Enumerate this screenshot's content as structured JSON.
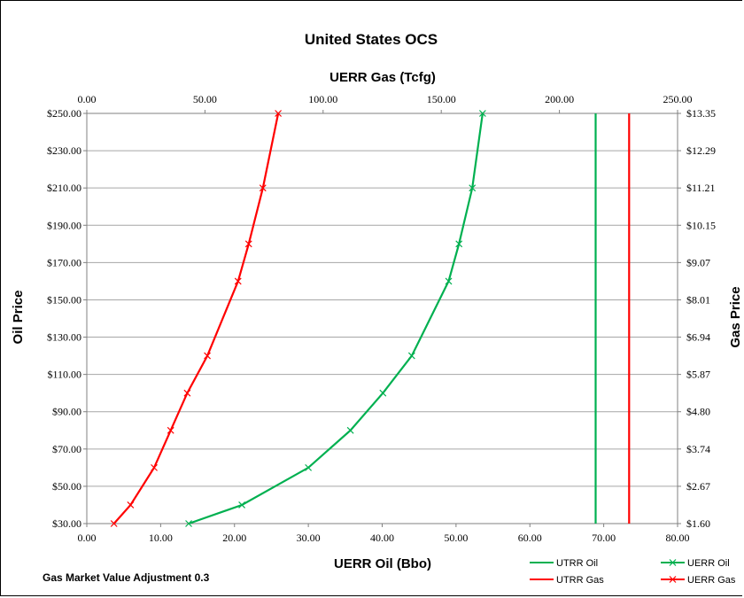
{
  "chart_data": {
    "type": "line",
    "title": "United States OCS",
    "x_bottom_label": "UERR Oil (Bbo)",
    "x_top_label": "UERR Gas (Tcfg)",
    "y_left_label": "Oil Price",
    "y_right_label": "Gas Price",
    "x_bottom_range": [
      0,
      80
    ],
    "x_bottom_ticks": [
      "0.00",
      "10.00",
      "20.00",
      "30.00",
      "40.00",
      "50.00",
      "60.00",
      "70.00",
      "80.00"
    ],
    "x_top_range": [
      0,
      250
    ],
    "x_top_ticks": [
      "0.00",
      "50.00",
      "100.00",
      "150.00",
      "200.00",
      "250.00"
    ],
    "y_left_range": [
      30,
      250
    ],
    "y_left_ticks": [
      "$30.00",
      "$50.00",
      "$70.00",
      "$90.00",
      "$110.00",
      "$130.00",
      "$150.00",
      "$170.00",
      "$190.00",
      "$210.00",
      "$230.00",
      "$250.00"
    ],
    "y_right_ticks": [
      "$1.60",
      "$2.67",
      "$3.74",
      "$4.80",
      "$5.87",
      "$6.94",
      "$8.01",
      "$9.07",
      "$10.15",
      "$11.21",
      "$12.29",
      "$13.35"
    ],
    "grid": "horizontal",
    "series": [
      {
        "name": "UTRR Oil",
        "axis": "bottom",
        "color": "#00b050",
        "marker": "none",
        "points": [
          [
            68.9,
            30
          ],
          [
            68.9,
            250
          ]
        ]
      },
      {
        "name": "UERR Oil",
        "axis": "bottom",
        "color": "#00b050",
        "marker": "x",
        "points": [
          [
            13.8,
            30
          ],
          [
            21.0,
            40
          ],
          [
            30.0,
            60
          ],
          [
            35.7,
            80
          ],
          [
            40.1,
            100
          ],
          [
            44.0,
            120
          ],
          [
            49.0,
            160
          ],
          [
            50.4,
            180
          ],
          [
            52.2,
            210
          ],
          [
            53.6,
            250
          ]
        ]
      },
      {
        "name": "UTRR Gas",
        "axis": "top",
        "color": "#ff0000",
        "marker": "none",
        "points": [
          [
            229.5,
            30
          ],
          [
            229.5,
            250
          ]
        ]
      },
      {
        "name": "UERR Gas",
        "axis": "top",
        "color": "#ff0000",
        "marker": "x",
        "points": [
          [
            11.5,
            30
          ],
          [
            18.5,
            40
          ],
          [
            28.5,
            60
          ],
          [
            35.5,
            80
          ],
          [
            42.5,
            100
          ],
          [
            51.0,
            120
          ],
          [
            64.0,
            160
          ],
          [
            68.5,
            180
          ],
          [
            74.5,
            210
          ],
          [
            81.0,
            250
          ]
        ]
      }
    ],
    "annotation": "Gas Market Value Adjustment 0.3",
    "legend": [
      "UTRR Oil",
      "UERR Oil",
      "UTRR Gas",
      "UERR Gas"
    ],
    "legend_position": "bottom-right"
  }
}
